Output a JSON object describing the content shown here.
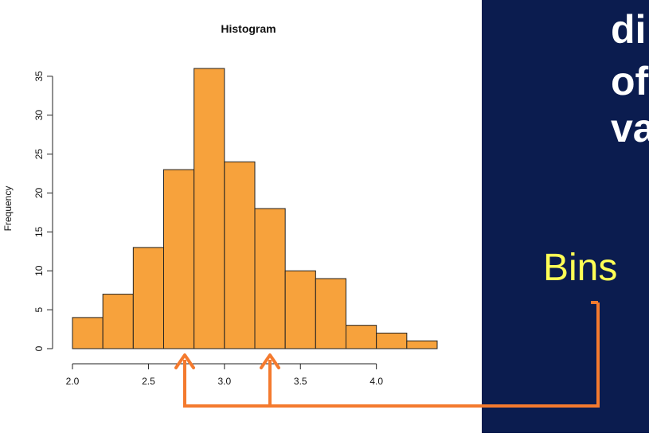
{
  "chart_data": {
    "type": "bar",
    "title": "Histogram",
    "xlabel": "",
    "ylabel": "Frequency",
    "bin_edges": [
      2.0,
      2.2,
      2.4,
      2.6,
      2.8,
      3.0,
      3.2,
      3.4,
      3.6,
      3.8,
      4.0,
      4.2,
      4.4
    ],
    "values": [
      4,
      7,
      13,
      23,
      36,
      24,
      18,
      10,
      9,
      3,
      2,
      1
    ],
    "x_ticks": [
      "2.0",
      "2.5",
      "3.0",
      "3.5",
      "4.0"
    ],
    "x_tick_values": [
      2.0,
      2.5,
      3.0,
      3.5,
      4.0
    ],
    "y_ticks": [
      "0",
      "5",
      "10",
      "15",
      "20",
      "25",
      "30",
      "35"
    ],
    "y_tick_values": [
      0,
      5,
      10,
      15,
      20,
      25,
      30,
      35
    ],
    "xlim": [
      2.0,
      4.4
    ],
    "ylim": [
      0,
      36
    ],
    "grid": false,
    "bar_color": "#f7a23c",
    "bar_edge_color": "#222222"
  },
  "panel": {
    "background": "#0b1c4f",
    "lines": [
      "di",
      "of",
      "va"
    ],
    "bins_label": "Bins"
  },
  "annotation": {
    "arrow_color": "#f47a2e"
  }
}
